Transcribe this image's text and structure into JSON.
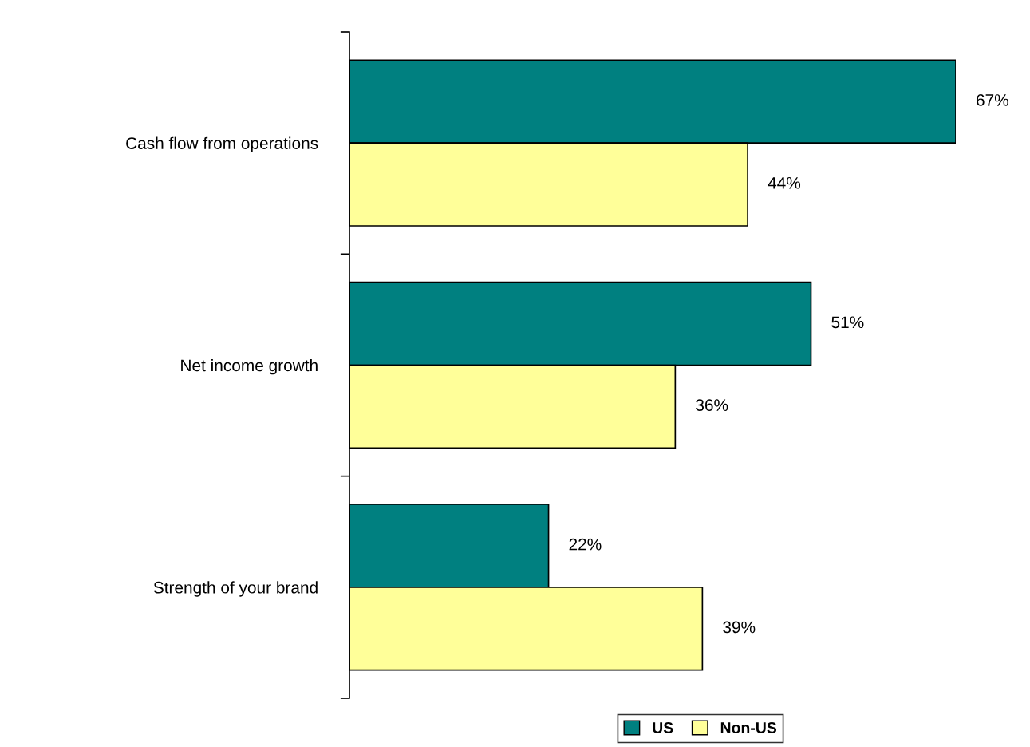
{
  "chart_data": {
    "type": "bar",
    "orientation": "horizontal",
    "categories": [
      "Cash flow from operations",
      "Net income growth",
      "Strength of your brand"
    ],
    "series": [
      {
        "name": "US",
        "color": "#008080",
        "values": [
          67,
          51,
          22
        ],
        "value_labels": [
          "67%",
          "51%",
          "22%"
        ]
      },
      {
        "name": "Non-US",
        "color": "#ffff99",
        "values": [
          44,
          36,
          39
        ],
        "value_labels": [
          "44%",
          "36%",
          "39%"
        ]
      }
    ],
    "legend": "bottom"
  }
}
